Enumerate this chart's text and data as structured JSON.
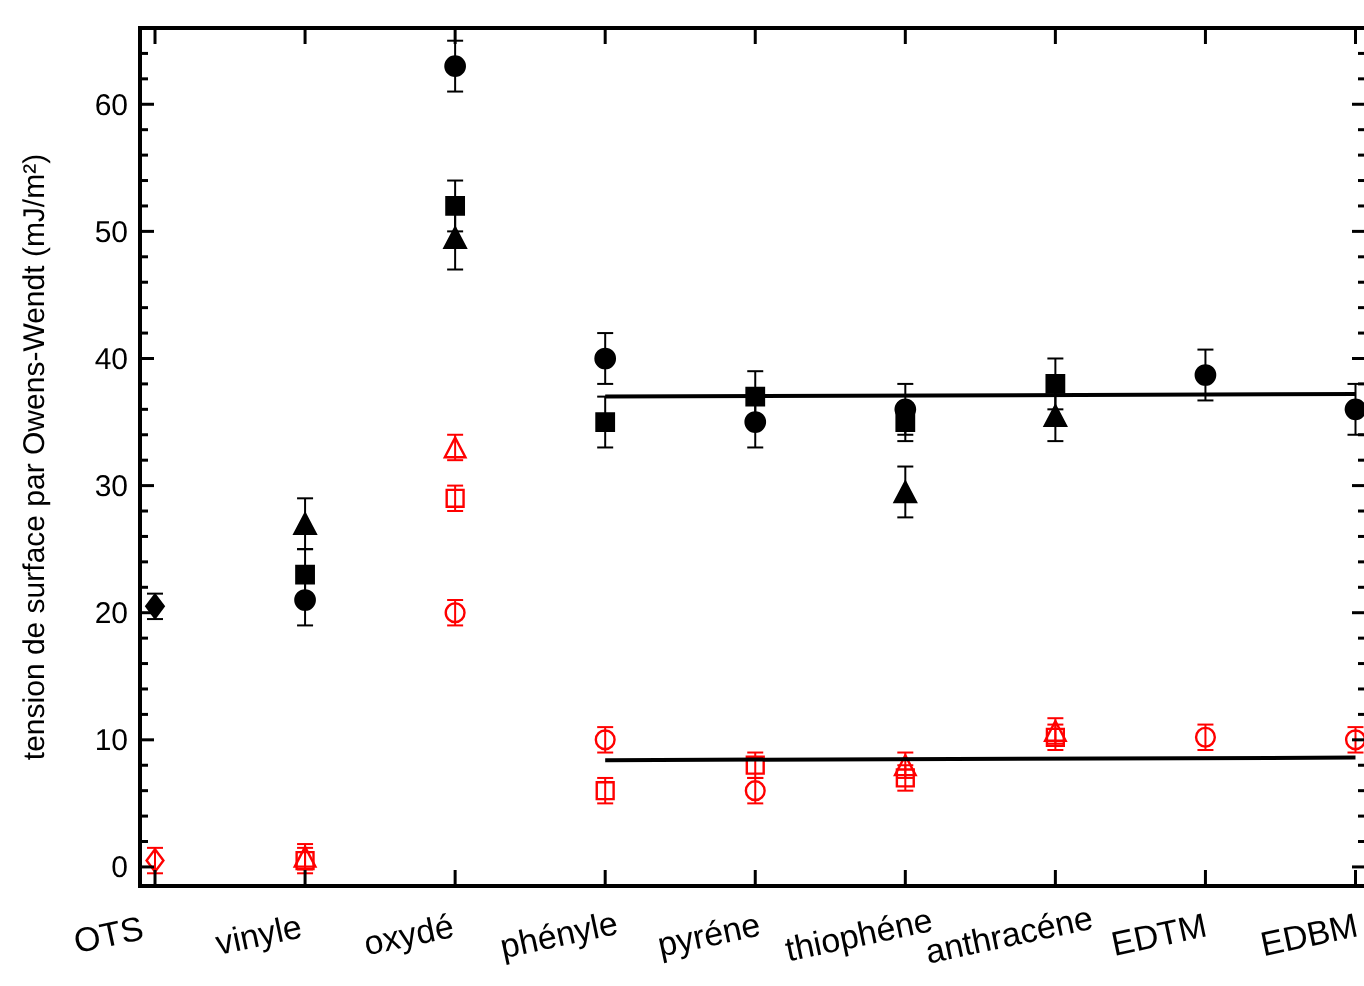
{
  "chart_data": {
    "type": "scatter",
    "ylabel": "tension de surface par Owens-Wendt (mJ/m²)",
    "categories": [
      "OTS",
      "vinyle",
      "oxydé",
      "phényle",
      "pyréne",
      "thiophéne",
      "anthracéne",
      "EDTM",
      "EDBM"
    ],
    "ylim": [
      -1.5,
      66
    ],
    "yticks": [
      0,
      {
        "value": 2,
        "label": null
      },
      {
        "value": 4,
        "label": null
      },
      {
        "value": 6,
        "label": null
      },
      {
        "value": 8,
        "label": null
      },
      10,
      {
        "value": 12,
        "label": null
      },
      {
        "value": 14,
        "label": null
      },
      {
        "value": 16,
        "label": null
      },
      {
        "value": 18,
        "label": null
      },
      20,
      {
        "value": 22,
        "label": null
      },
      {
        "value": 24,
        "label": null
      },
      {
        "value": 26,
        "label": null
      },
      {
        "value": 28,
        "label": null
      },
      30,
      {
        "value": 32,
        "label": null
      },
      {
        "value": 34,
        "label": null
      },
      {
        "value": 36,
        "label": null
      },
      {
        "value": 38,
        "label": null
      },
      40,
      {
        "value": 42,
        "label": null
      },
      {
        "value": 44,
        "label": null
      },
      {
        "value": 46,
        "label": null
      },
      {
        "value": 48,
        "label": null
      },
      50,
      {
        "value": 52,
        "label": null
      },
      {
        "value": 54,
        "label": null
      },
      {
        "value": 56,
        "label": null
      },
      {
        "value": 58,
        "label": null
      },
      60,
      {
        "value": 62,
        "label": null
      },
      {
        "value": 64,
        "label": null
      }
    ],
    "series": [
      {
        "color": "#000000",
        "marker": "circle",
        "values": [
          null,
          21,
          63,
          40,
          35,
          36,
          null,
          38.7,
          36
        ],
        "errors": [
          null,
          2,
          2,
          2,
          2,
          2,
          null,
          2,
          2
        ]
      },
      {
        "color": "#000000",
        "marker": "square",
        "values": [
          null,
          23,
          52,
          35,
          37,
          35,
          38,
          null,
          null
        ],
        "errors": [
          null,
          2,
          2,
          2,
          2,
          1.5,
          2,
          null,
          null
        ]
      },
      {
        "color": "#000000",
        "marker": "triangle",
        "values": [
          null,
          27,
          49.5,
          null,
          null,
          29.5,
          35.5,
          null,
          null
        ],
        "errors": [
          null,
          2,
          2.5,
          null,
          null,
          2,
          2,
          null,
          null
        ]
      },
      {
        "color": "#000000",
        "marker": "diamond",
        "values": [
          20.5,
          null,
          null,
          null,
          null,
          null,
          null,
          null,
          null
        ],
        "errors": [
          1,
          null,
          null,
          null,
          null,
          null,
          null,
          null,
          null
        ]
      },
      {
        "color": "#ff0000",
        "marker": "circle",
        "values": [
          null,
          null,
          20,
          10,
          6,
          null,
          null,
          10.2,
          10
        ],
        "errors": [
          null,
          null,
          1,
          1,
          1,
          null,
          null,
          1,
          1
        ]
      },
      {
        "color": "#ff0000",
        "marker": "square",
        "values": [
          null,
          0.5,
          29,
          6,
          8,
          7,
          10.2,
          null,
          null
        ],
        "errors": [
          null,
          1,
          1,
          1,
          1,
          1,
          1,
          null,
          null
        ]
      },
      {
        "color": "#ff0000",
        "marker": "triangle",
        "values": [
          null,
          0.8,
          33,
          null,
          null,
          8,
          10.7,
          null,
          null
        ],
        "errors": [
          null,
          1,
          1,
          null,
          null,
          1,
          1,
          null,
          null
        ]
      },
      {
        "color": "#ff0000",
        "marker": "diamond",
        "values": [
          0.5,
          null,
          null,
          null,
          null,
          null,
          null,
          null,
          null
        ],
        "errors": [
          1,
          null,
          null,
          null,
          null,
          null,
          null,
          null,
          null
        ]
      },
      {
        "type": "line",
        "color": "#000000",
        "x": [
          "phényle",
          "EDBM"
        ],
        "values": [
          37,
          37.2
        ]
      },
      {
        "type": "line",
        "color": "#000000",
        "x": [
          "phényle",
          "EDBM"
        ],
        "values": [
          8.4,
          8.6
        ]
      }
    ]
  }
}
